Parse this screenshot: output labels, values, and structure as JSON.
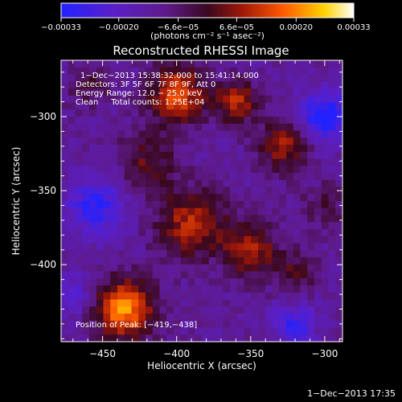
{
  "chart_data": {
    "type": "heatmap",
    "title": "Reconstructed RHESSI Image",
    "xlabel": "Heliocentric X (arcsec)",
    "ylabel": "Heliocentric Y (arcsec)",
    "xlim": [
      -478,
      -288
    ],
    "ylim": [
      -452,
      -262
    ],
    "x_ticks": [
      -450,
      -400,
      -350,
      -300
    ],
    "y_ticks": [
      -400,
      -350,
      -300
    ],
    "x_tick_labels": [
      "−450",
      "−400",
      "−350",
      "−300"
    ],
    "y_tick_labels": [
      "−400",
      "−350",
      "−300"
    ],
    "grid": false,
    "colorbar": {
      "min": -0.00033,
      "max": 0.00033,
      "ticks": [
        -0.00033,
        -0.0002,
        -6.6e-05,
        6.6e-05,
        0.0002,
        0.00033
      ],
      "tick_labels": [
        "−0.00033",
        "−0.00020",
        "−6.6e−05",
        "6.6e−05",
        "0.00020",
        "0.00033"
      ],
      "units": "(photons cm⁻² s⁻¹ asec⁻²)"
    },
    "annotations": [
      "1−Dec−2013 15:38:32.000 to 15:41:14.000",
      "Detectors: 3F 5F 6F 7F 8F 9F, Att 0",
      "Energy Range: 12.0 − 25.0 keV",
      "Clean     Total counts: 1.25E+04"
    ],
    "position_of_peak": "Position of Peak: [−419,−438]",
    "cells_grid_size": 40,
    "sources": [
      {
        "x": -435,
        "y": -430,
        "strength": 0.00033,
        "sigma": 14
      },
      {
        "x": -400,
        "y": -285,
        "strength": 0.00028,
        "sigma": 13
      },
      {
        "x": -360,
        "y": -290,
        "strength": 0.00022,
        "sigma": 10
      },
      {
        "x": -328,
        "y": -320,
        "strength": 0.0002,
        "sigma": 12
      },
      {
        "x": -390,
        "y": -372,
        "strength": 0.00022,
        "sigma": 16
      },
      {
        "x": -350,
        "y": -390,
        "strength": 0.0002,
        "sigma": 13
      },
      {
        "x": -420,
        "y": -330,
        "strength": 0.00014,
        "sigma": 14
      },
      {
        "x": -460,
        "y": -280,
        "strength": 0.0001,
        "sigma": 10
      },
      {
        "x": -300,
        "y": -360,
        "strength": 0.0001,
        "sigma": 10
      },
      {
        "x": -318,
        "y": -405,
        "strength": 0.00012,
        "sigma": 10
      }
    ],
    "negative_spots": [
      {
        "x": -300,
        "y": -300,
        "strength": -0.00024,
        "sigma": 12
      },
      {
        "x": -455,
        "y": -360,
        "strength": -0.00018,
        "sigma": 14
      },
      {
        "x": -320,
        "y": -440,
        "strength": -0.00016,
        "sigma": 10
      },
      {
        "x": -470,
        "y": -420,
        "strength": -0.00012,
        "sigma": 10
      }
    ]
  },
  "footer_date": "1−Dec−2013 17:35"
}
